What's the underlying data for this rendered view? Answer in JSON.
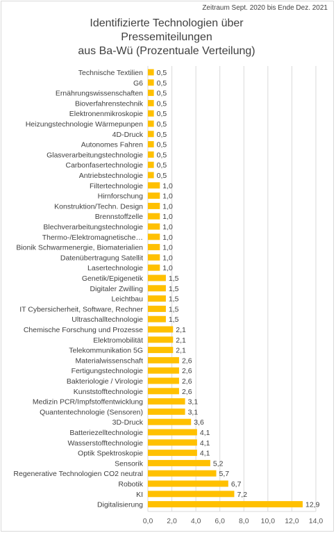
{
  "period_note": "Zeitraum Sept. 2020 bis Ende Dez. 2021",
  "title_lines": [
    "Identifizierte Technologien über",
    "Pressemiteilungen",
    "aus Ba-Wü (Prozentuale Verteilung)"
  ],
  "colors": {
    "bar": "#ffc000",
    "grid": "#d9d9d9",
    "text": "#404040"
  },
  "chart_data": {
    "type": "bar",
    "orientation": "horizontal",
    "title": "Identifizierte Technologien über Pressemiteilungen aus Ba-Wü (Prozentuale Verteilung)",
    "categories": [
      "Technische Textilien",
      "G6",
      "Ernährungswissenschaften",
      "Bioverfahrenstechnik",
      "Elektronenmikroskopie",
      "Heizungstechnologie Wärmepunpen",
      "4D-Druck",
      "Autonomes Fahren",
      "Glasverarbeitungstechnologie",
      "Carbonfasertechnologie",
      "Antriebstechnologie",
      "Filtertechnologie",
      "Hirnforschung",
      "Konstruktion/Techn. Design",
      "Brennstoffzelle",
      "Blechverarbeitungstechnologie",
      "Thermo-/Elektromagnetische…",
      "Bionik Schwarmenergie, Biomaterialien",
      "Datenübertragung Satellit",
      "Lasertechnologie",
      "Genetik/Epigenetik",
      "Digitaler Zwilling",
      "Leichtbau",
      "IT Cybersicherheit, Software, Rechner",
      "Ultraschalltechnologie",
      "Chemische Forschung und Prozesse",
      "Elektromobilität",
      "Telekommunikation 5G",
      "Materialwissenschaft",
      "Fertigungstechnologie",
      "Bakteriologie / Virologie",
      "Kunststofftechnologie",
      "Medizin PCR/Impfstoffentwicklung",
      "Quantentechnologie (Sensoren)",
      "3D-Druck",
      "Batteriezelltechnologie",
      "Wasserstofftechnologie",
      "Optik Spektroskopie",
      "Sensorik",
      "Regenerative Technologien CO2 neutral",
      "Robotik",
      "KI",
      "Digitalisierung"
    ],
    "values": [
      0.5,
      0.5,
      0.5,
      0.5,
      0.5,
      0.5,
      0.5,
      0.5,
      0.5,
      0.5,
      0.5,
      1.0,
      1.0,
      1.0,
      1.0,
      1.0,
      1.0,
      1.0,
      1.0,
      1.0,
      1.5,
      1.5,
      1.5,
      1.5,
      1.5,
      2.1,
      2.1,
      2.1,
      2.6,
      2.6,
      2.6,
      2.6,
      3.1,
      3.1,
      3.6,
      4.1,
      4.1,
      4.1,
      5.2,
      5.7,
      6.7,
      7.2,
      12.9
    ],
    "data_labels": [
      "0,5",
      "0,5",
      "0,5",
      "0,5",
      "0,5",
      "0,5",
      "0,5",
      "0,5",
      "0,5",
      "0,5",
      "0,5",
      "1,0",
      "1,0",
      "1,0",
      "1,0",
      "1,0",
      "1,0",
      "1,0",
      "1,0",
      "1,0",
      "1,5",
      "1,5",
      "1,5",
      "1,5",
      "1,5",
      "2,1",
      "2,1",
      "2,1",
      "2,6",
      "2,6",
      "2,6",
      "2,6",
      "3,1",
      "3,1",
      "3,6",
      "4,1",
      "4,1",
      "4,1",
      "5,2",
      "5,7",
      "6,7",
      "7,2",
      "12,9"
    ],
    "xlim": [
      0,
      14
    ],
    "x_ticks": [
      0,
      2,
      4,
      6,
      8,
      10,
      12,
      14
    ],
    "x_tick_labels": [
      "0,0",
      "2,0",
      "4,0",
      "6,0",
      "8,0",
      "10,0",
      "12,0",
      "14,0"
    ],
    "grid": true,
    "legend": "none"
  }
}
